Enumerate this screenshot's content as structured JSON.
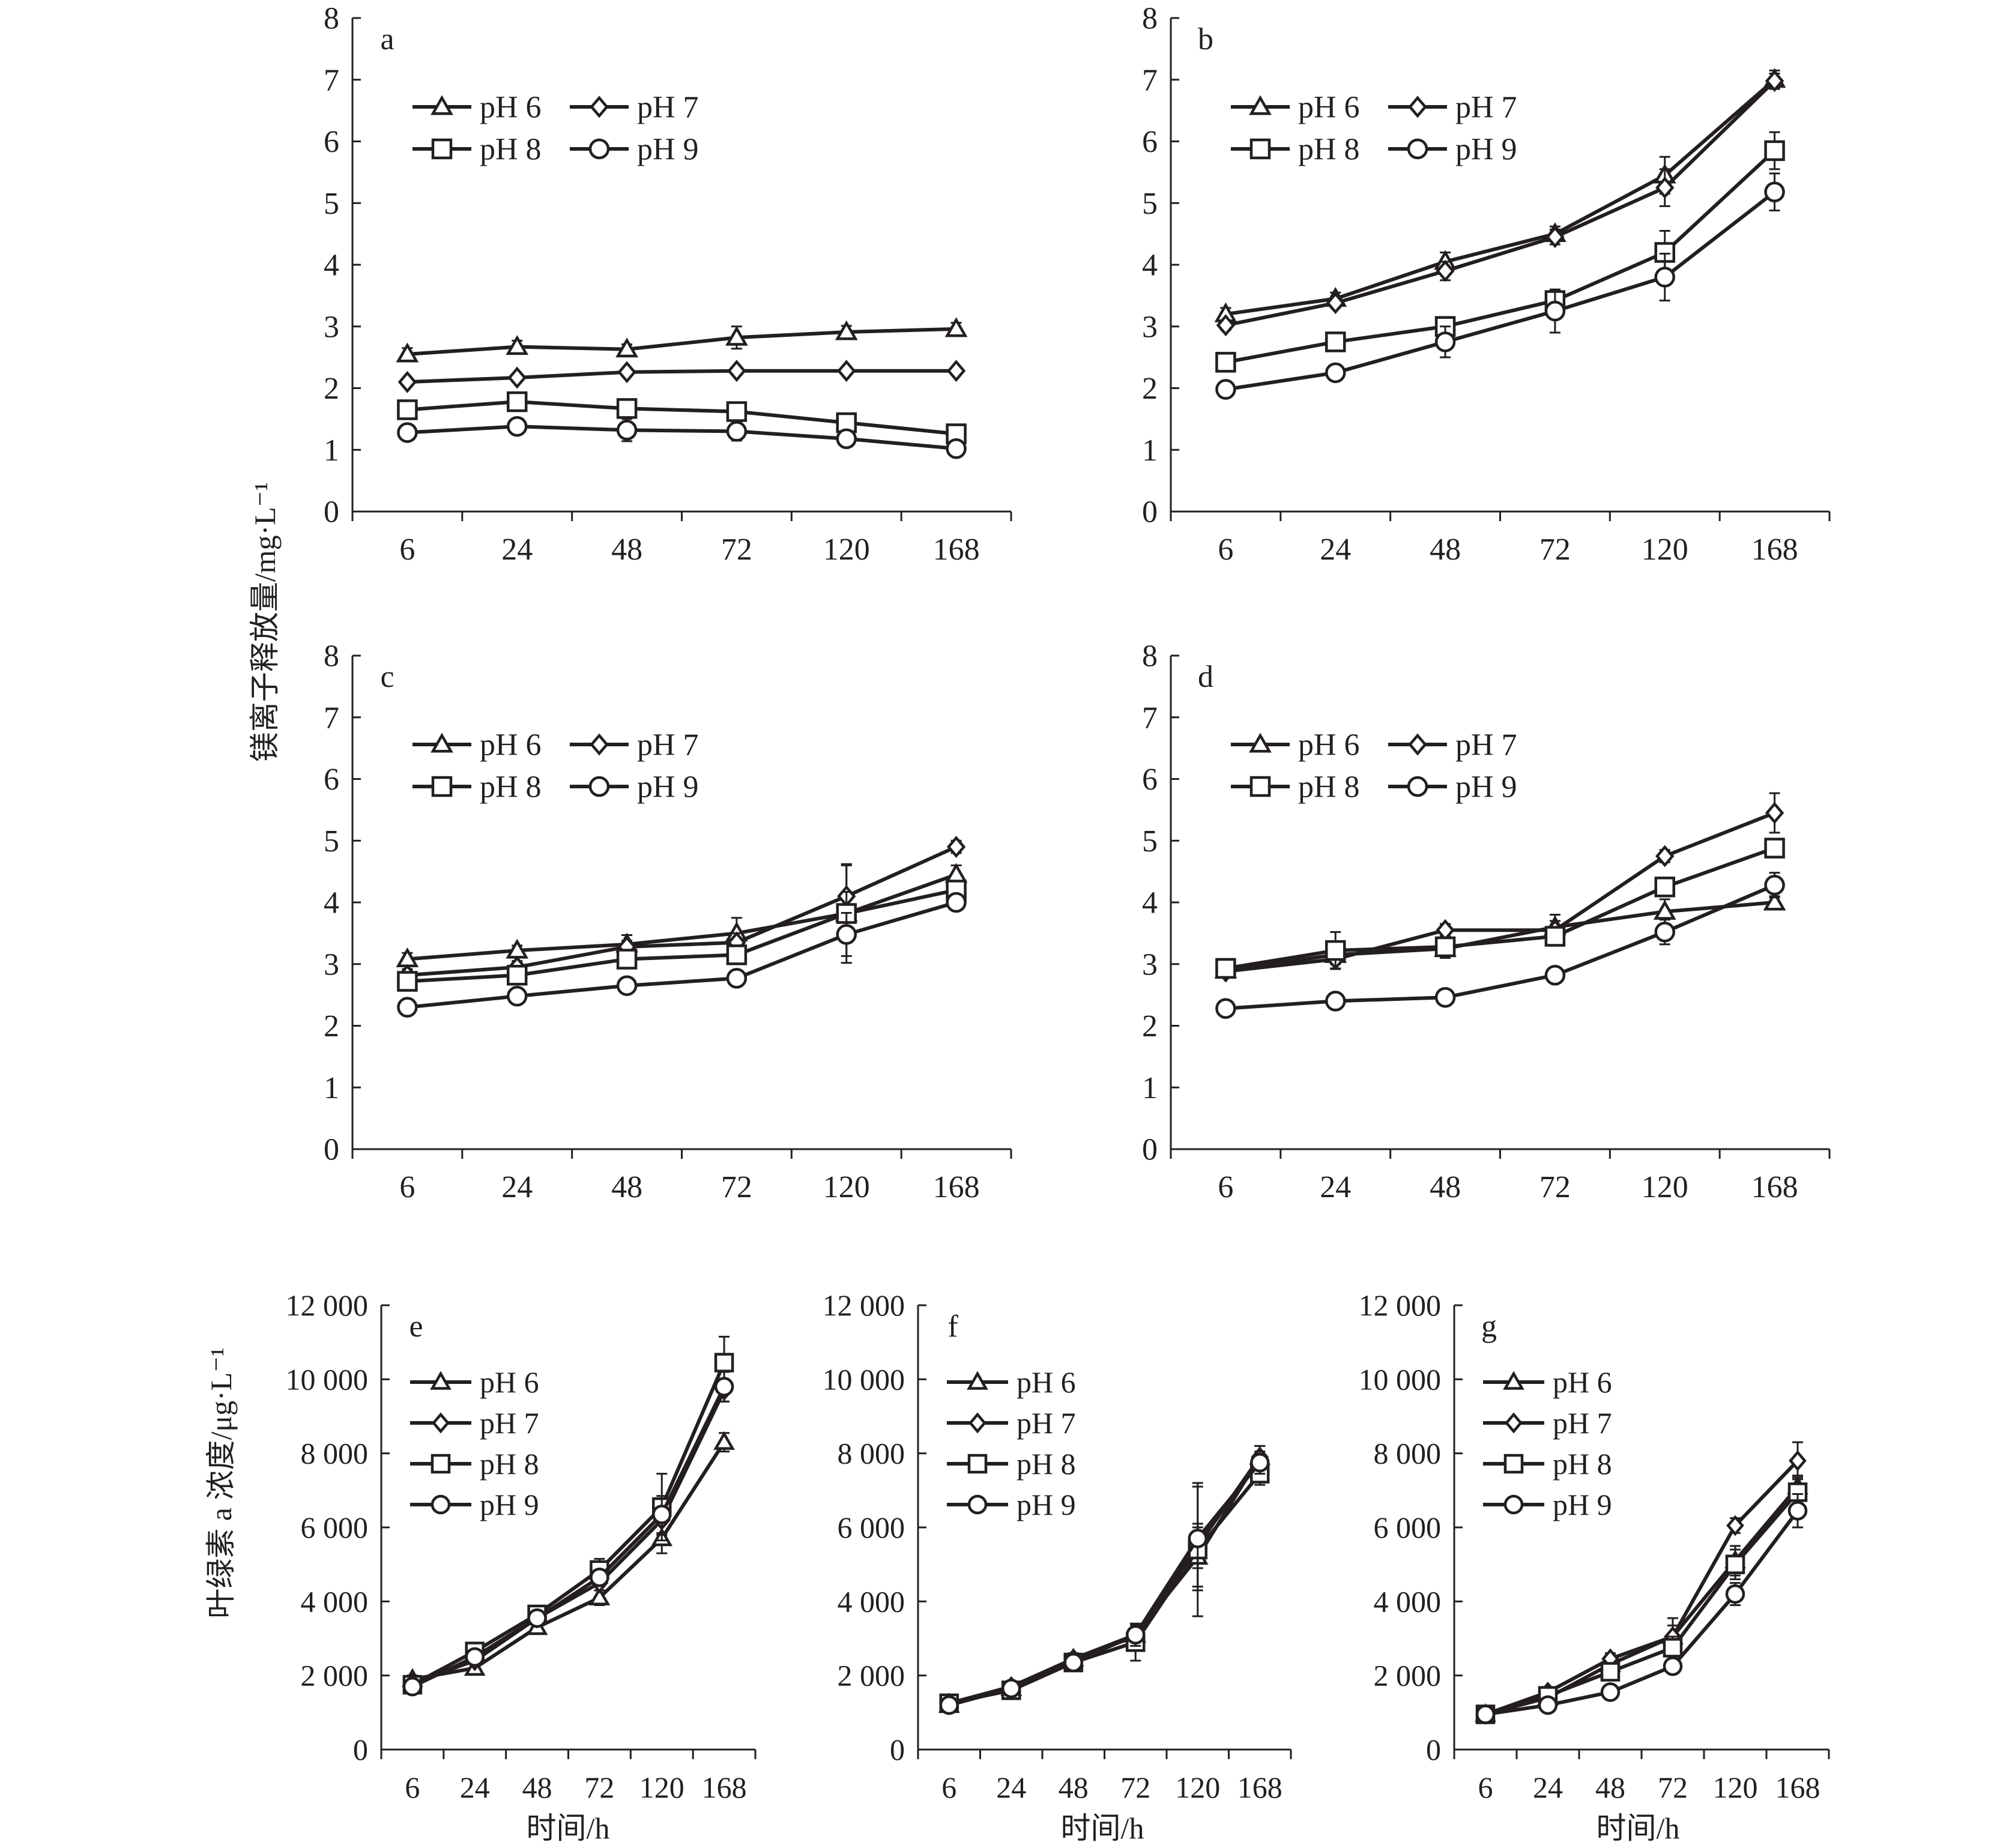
{
  "figure": {
    "mg_ylabel": "镁离子释放量/mg·L⁻¹",
    "chl_ylabel": "叶绿素 a 浓度/μg·L⁻¹",
    "xlabel": "时间/h",
    "line_color": "#231f20"
  },
  "chart_data": [
    {
      "panel": "a",
      "type": "line",
      "categories": [
        "6",
        "24",
        "48",
        "72",
        "120",
        "168"
      ],
      "ylim": [
        0,
        8
      ],
      "yticks": [
        "0",
        "1",
        "2",
        "3",
        "4",
        "5",
        "6",
        "7",
        "8"
      ],
      "legend": "two-column",
      "series": [
        {
          "name": "pH 6",
          "marker": "triangle",
          "values": [
            2.55,
            2.67,
            2.63,
            2.82,
            2.91,
            2.96
          ],
          "err": [
            0.1,
            0.1,
            0.08,
            0.18,
            0.1,
            0.1
          ]
        },
        {
          "name": "pH 7",
          "marker": "diamond",
          "values": [
            2.1,
            2.17,
            2.26,
            2.28,
            2.28,
            2.28
          ],
          "err": [
            0.05,
            0.05,
            0.05,
            0.05,
            0.05,
            0.05
          ]
        },
        {
          "name": "pH 8",
          "marker": "square",
          "values": [
            1.65,
            1.78,
            1.67,
            1.62,
            1.44,
            1.26
          ],
          "err": [
            0.12,
            0.15,
            0.15,
            0.12,
            0.12,
            0.15
          ]
        },
        {
          "name": "pH 9",
          "marker": "circle",
          "values": [
            1.28,
            1.38,
            1.32,
            1.3,
            1.18,
            1.02
          ],
          "err": [
            0.08,
            0.08,
            0.18,
            0.15,
            0.12,
            0.08
          ]
        }
      ]
    },
    {
      "panel": "b",
      "type": "line",
      "categories": [
        "6",
        "24",
        "48",
        "72",
        "120",
        "168"
      ],
      "ylim": [
        0,
        8
      ],
      "yticks": [
        "0",
        "1",
        "2",
        "3",
        "4",
        "5",
        "6",
        "7",
        "8"
      ],
      "legend": "two-column",
      "series": [
        {
          "name": "pH 6",
          "marker": "triangle",
          "values": [
            3.2,
            3.45,
            4.05,
            4.5,
            5.45,
            7.0
          ],
          "err": [
            0.1,
            0.1,
            0.15,
            0.12,
            0.3,
            0.15
          ]
        },
        {
          "name": "pH 7",
          "marker": "diamond",
          "values": [
            3.02,
            3.38,
            3.9,
            4.45,
            5.25,
            6.98
          ],
          "err": [
            0.08,
            0.08,
            0.15,
            0.12,
            0.3,
            0.12
          ]
        },
        {
          "name": "pH 8",
          "marker": "square",
          "values": [
            2.42,
            2.75,
            3.0,
            3.42,
            4.2,
            5.85
          ],
          "err": [
            0.1,
            0.12,
            0.1,
            0.15,
            0.35,
            0.3
          ]
        },
        {
          "name": "pH 9",
          "marker": "circle",
          "values": [
            1.98,
            2.25,
            2.75,
            3.25,
            3.8,
            5.18
          ],
          "err": [
            0.12,
            0.08,
            0.25,
            0.35,
            0.38,
            0.3
          ]
        }
      ]
    },
    {
      "panel": "c",
      "type": "line",
      "categories": [
        "6",
        "24",
        "48",
        "72",
        "120",
        "168"
      ],
      "ylim": [
        0,
        8
      ],
      "yticks": [
        "0",
        "1",
        "2",
        "3",
        "4",
        "5",
        "6",
        "7",
        "8"
      ],
      "legend": "two-column",
      "series": [
        {
          "name": "pH 6",
          "marker": "triangle",
          "values": [
            3.08,
            3.22,
            3.32,
            3.5,
            3.82,
            4.45
          ],
          "err": [
            0.1,
            0.08,
            0.15,
            0.25,
            0.8,
            0.15
          ]
        },
        {
          "name": "pH 7",
          "marker": "diamond",
          "values": [
            2.82,
            2.95,
            3.28,
            3.35,
            4.1,
            4.9
          ],
          "err": [
            0.1,
            0.1,
            0.1,
            0.15,
            0.5,
            0.1
          ]
        },
        {
          "name": "pH 8",
          "marker": "square",
          "values": [
            2.72,
            2.82,
            3.08,
            3.15,
            3.82,
            4.2
          ],
          "err": [
            0.15,
            0.12,
            0.15,
            0.15,
            0.35,
            0.15
          ]
        },
        {
          "name": "pH 9",
          "marker": "circle",
          "values": [
            2.3,
            2.48,
            2.65,
            2.77,
            3.48,
            4.0
          ],
          "err": [
            0.1,
            0.1,
            0.08,
            0.1,
            0.35,
            0.12
          ]
        }
      ]
    },
    {
      "panel": "d",
      "type": "line",
      "categories": [
        "6",
        "24",
        "48",
        "72",
        "120",
        "168"
      ],
      "ylim": [
        0,
        8
      ],
      "yticks": [
        "0",
        "1",
        "2",
        "3",
        "4",
        "5",
        "6",
        "7",
        "8"
      ],
      "legend": "two-column",
      "series": [
        {
          "name": "pH 6",
          "marker": "triangle",
          "values": [
            2.9,
            3.15,
            3.25,
            3.6,
            3.85,
            4.0
          ],
          "err": [
            0.08,
            0.15,
            0.15,
            0.2,
            0.2,
            0.1
          ]
        },
        {
          "name": "pH 7",
          "marker": "diamond",
          "values": [
            2.88,
            3.08,
            3.55,
            3.55,
            4.75,
            5.45
          ],
          "err": [
            0.08,
            0.15,
            0.1,
            0.15,
            0.1,
            0.32
          ]
        },
        {
          "name": "pH 8",
          "marker": "square",
          "values": [
            2.93,
            3.22,
            3.28,
            3.45,
            4.25,
            4.88
          ],
          "err": [
            0.1,
            0.3,
            0.1,
            0.15,
            0.12,
            0.15
          ]
        },
        {
          "name": "pH 9",
          "marker": "circle",
          "values": [
            2.28,
            2.4,
            2.46,
            2.82,
            3.52,
            4.28
          ],
          "err": [
            0.08,
            0.08,
            0.1,
            0.1,
            0.2,
            0.2
          ]
        }
      ]
    },
    {
      "panel": "e",
      "type": "line",
      "categories": [
        "6",
        "24",
        "48",
        "72",
        "120",
        "168"
      ],
      "ylim": [
        0,
        12000
      ],
      "yticks": [
        "0",
        "2 000",
        "4 000",
        "6 000",
        "8 000",
        "10 000",
        "12 000"
      ],
      "legend": "one-column",
      "series": [
        {
          "name": "pH 6",
          "marker": "triangle",
          "values": [
            1900,
            2200,
            3300,
            4100,
            5700,
            8300
          ],
          "err": [
            100,
            100,
            150,
            200,
            400,
            250
          ]
        },
        {
          "name": "pH 7",
          "marker": "diamond",
          "values": [
            1800,
            2400,
            3550,
            4500,
            6200,
            9700
          ],
          "err": [
            100,
            100,
            150,
            200,
            400,
            300
          ]
        },
        {
          "name": "pH 8",
          "marker": "square",
          "values": [
            1750,
            2650,
            3650,
            4850,
            6550,
            10450
          ],
          "err": [
            100,
            100,
            150,
            300,
            900,
            700
          ]
        },
        {
          "name": "pH 9",
          "marker": "circle",
          "values": [
            1700,
            2500,
            3550,
            4650,
            6350,
            9800
          ],
          "err": [
            100,
            100,
            150,
            200,
            500,
            400
          ]
        }
      ]
    },
    {
      "panel": "f",
      "type": "line",
      "categories": [
        "6",
        "24",
        "48",
        "72",
        "120",
        "168"
      ],
      "ylim": [
        0,
        12000
      ],
      "yticks": [
        "0",
        "2 000",
        "4 000",
        "6 000",
        "8 000",
        "10 000",
        "12 000"
      ],
      "legend": "one-column",
      "series": [
        {
          "name": "pH 6",
          "marker": "triangle",
          "values": [
            1200,
            1650,
            2450,
            3100,
            5200,
            7900
          ],
          "err": [
            80,
            100,
            150,
            300,
            800,
            300
          ]
        },
        {
          "name": "pH 7",
          "marker": "diamond",
          "values": [
            1250,
            1700,
            2450,
            3050,
            5500,
            7900
          ],
          "err": [
            80,
            100,
            150,
            300,
            600,
            300
          ]
        },
        {
          "name": "pH 8",
          "marker": "square",
          "values": [
            1250,
            1600,
            2350,
            2900,
            5400,
            7450
          ],
          "err": [
            80,
            100,
            150,
            500,
            1800,
            300
          ]
        },
        {
          "name": "pH 9",
          "marker": "circle",
          "values": [
            1200,
            1650,
            2350,
            3100,
            5700,
            7750
          ],
          "err": [
            80,
            100,
            150,
            300,
            1400,
            300
          ]
        }
      ]
    },
    {
      "panel": "g",
      "type": "line",
      "categories": [
        "6",
        "24",
        "48",
        "72",
        "120",
        "168"
      ],
      "ylim": [
        0,
        12000
      ],
      "yticks": [
        "0",
        "2 000",
        "4 000",
        "6 000",
        "8 000",
        "10 000",
        "12 000"
      ],
      "legend": "one-column",
      "series": [
        {
          "name": "pH 6",
          "marker": "triangle",
          "values": [
            950,
            1400,
            2300,
            3050,
            5100,
            7100
          ],
          "err": [
            80,
            100,
            200,
            500,
            400,
            300
          ]
        },
        {
          "name": "pH 7",
          "marker": "diamond",
          "values": [
            950,
            1550,
            2450,
            3050,
            6050,
            7800
          ],
          "err": [
            80,
            100,
            150,
            300,
            200,
            500
          ]
        },
        {
          "name": "pH 8",
          "marker": "square",
          "values": [
            950,
            1450,
            2100,
            2750,
            5000,
            6950
          ],
          "err": [
            80,
            100,
            150,
            300,
            400,
            400
          ]
        },
        {
          "name": "pH 9",
          "marker": "circle",
          "values": [
            950,
            1200,
            1550,
            2250,
            4200,
            6450
          ],
          "err": [
            80,
            100,
            150,
            200,
            300,
            450
          ]
        }
      ]
    }
  ]
}
